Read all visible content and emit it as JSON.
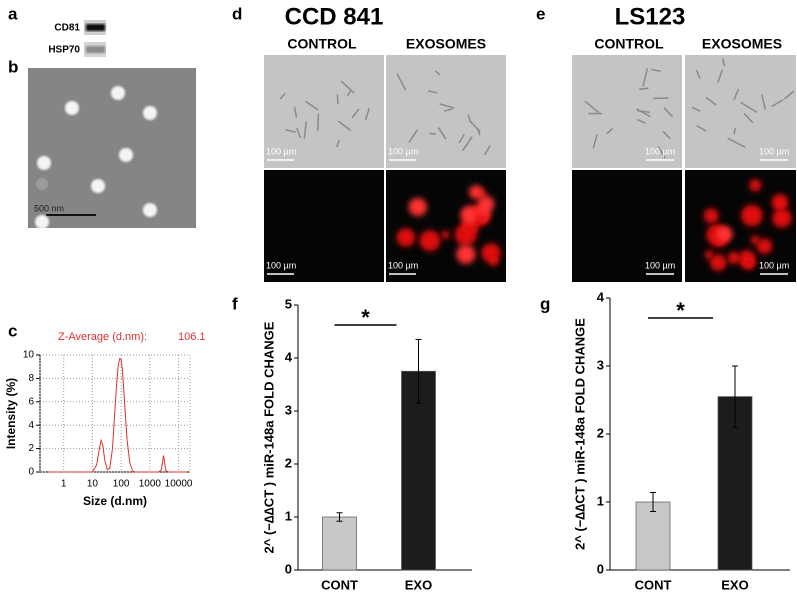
{
  "panel_a": {
    "label": "a",
    "bands": [
      "CD81",
      "HSP70"
    ]
  },
  "panel_b": {
    "label": "b",
    "scale_bar": "500 nm"
  },
  "panel_d": {
    "label": "d",
    "title": "CCD 841",
    "columns": [
      "CONTROL",
      "EXOSOMES"
    ],
    "scale_bars": [
      "100 µm",
      "100 µm",
      "100 µm",
      "100 µm"
    ]
  },
  "panel_e": {
    "label": "e",
    "title": "LS123",
    "columns": [
      "CONTROL",
      "EXOSOMES"
    ],
    "scale_bars": [
      "100 µm",
      "100 µm",
      "100 µm",
      "100 µm"
    ]
  },
  "chart_data": [
    {
      "type": "line",
      "label": "c",
      "annotation": "Z-Average (d.nm):",
      "annotation_value": "106.1",
      "x_label": "Size (d.nm)",
      "y_label": "Intensity (%)",
      "xscale": "log",
      "grid": true,
      "color": "#e03030",
      "xlim": [
        0.15,
        25000
      ],
      "ylim": [
        0,
        10
      ],
      "xticks": [
        1,
        10,
        100,
        1000,
        10000
      ],
      "yticks": [
        0,
        2,
        4,
        6,
        8,
        10
      ],
      "x": [
        0.3,
        1,
        5,
        10,
        14,
        17,
        20,
        23,
        27,
        33,
        40,
        50,
        60,
        70,
        80,
        90,
        100,
        110,
        120,
        140,
        160,
        200,
        250,
        300,
        400,
        600,
        1000,
        2000,
        2500,
        2800,
        3000,
        3300,
        3600,
        4500,
        10000,
        20000
      ],
      "values": [
        0,
        0,
        0,
        0,
        0.6,
        1.8,
        2.7,
        2.3,
        1.0,
        0.2,
        0.3,
        2.0,
        5.0,
        7.6,
        9.2,
        9.7,
        9.6,
        8.8,
        7.5,
        5.0,
        2.8,
        0.8,
        0.1,
        0,
        0,
        0,
        0,
        0,
        0.2,
        0.9,
        1.4,
        0.8,
        0.1,
        0,
        0,
        0
      ]
    },
    {
      "type": "bar",
      "label": "f",
      "y_label": "2^ (−∆∆CT ) miR-148a FOLD CHANGE",
      "significance": "*",
      "categories": [
        "CONT",
        "EXO"
      ],
      "values": [
        1.0,
        3.75
      ],
      "errors": [
        0.08,
        0.6
      ],
      "colors": [
        "#c8c8c8",
        "#1c1c1c"
      ],
      "ylim": [
        0,
        5
      ],
      "yticks": [
        0,
        1,
        2,
        3,
        4,
        5
      ]
    },
    {
      "type": "bar",
      "label": "g",
      "y_label": "2^ (−∆∆CT ) miR-148a FOLD CHANGE",
      "significance": "*",
      "categories": [
        "CONT",
        "EXO"
      ],
      "values": [
        1.0,
        2.55
      ],
      "errors": [
        0.14,
        0.45
      ],
      "colors": [
        "#c8c8c8",
        "#1c1c1c"
      ],
      "ylim": [
        0,
        4
      ],
      "yticks": [
        0,
        1,
        2,
        3,
        4
      ]
    }
  ]
}
